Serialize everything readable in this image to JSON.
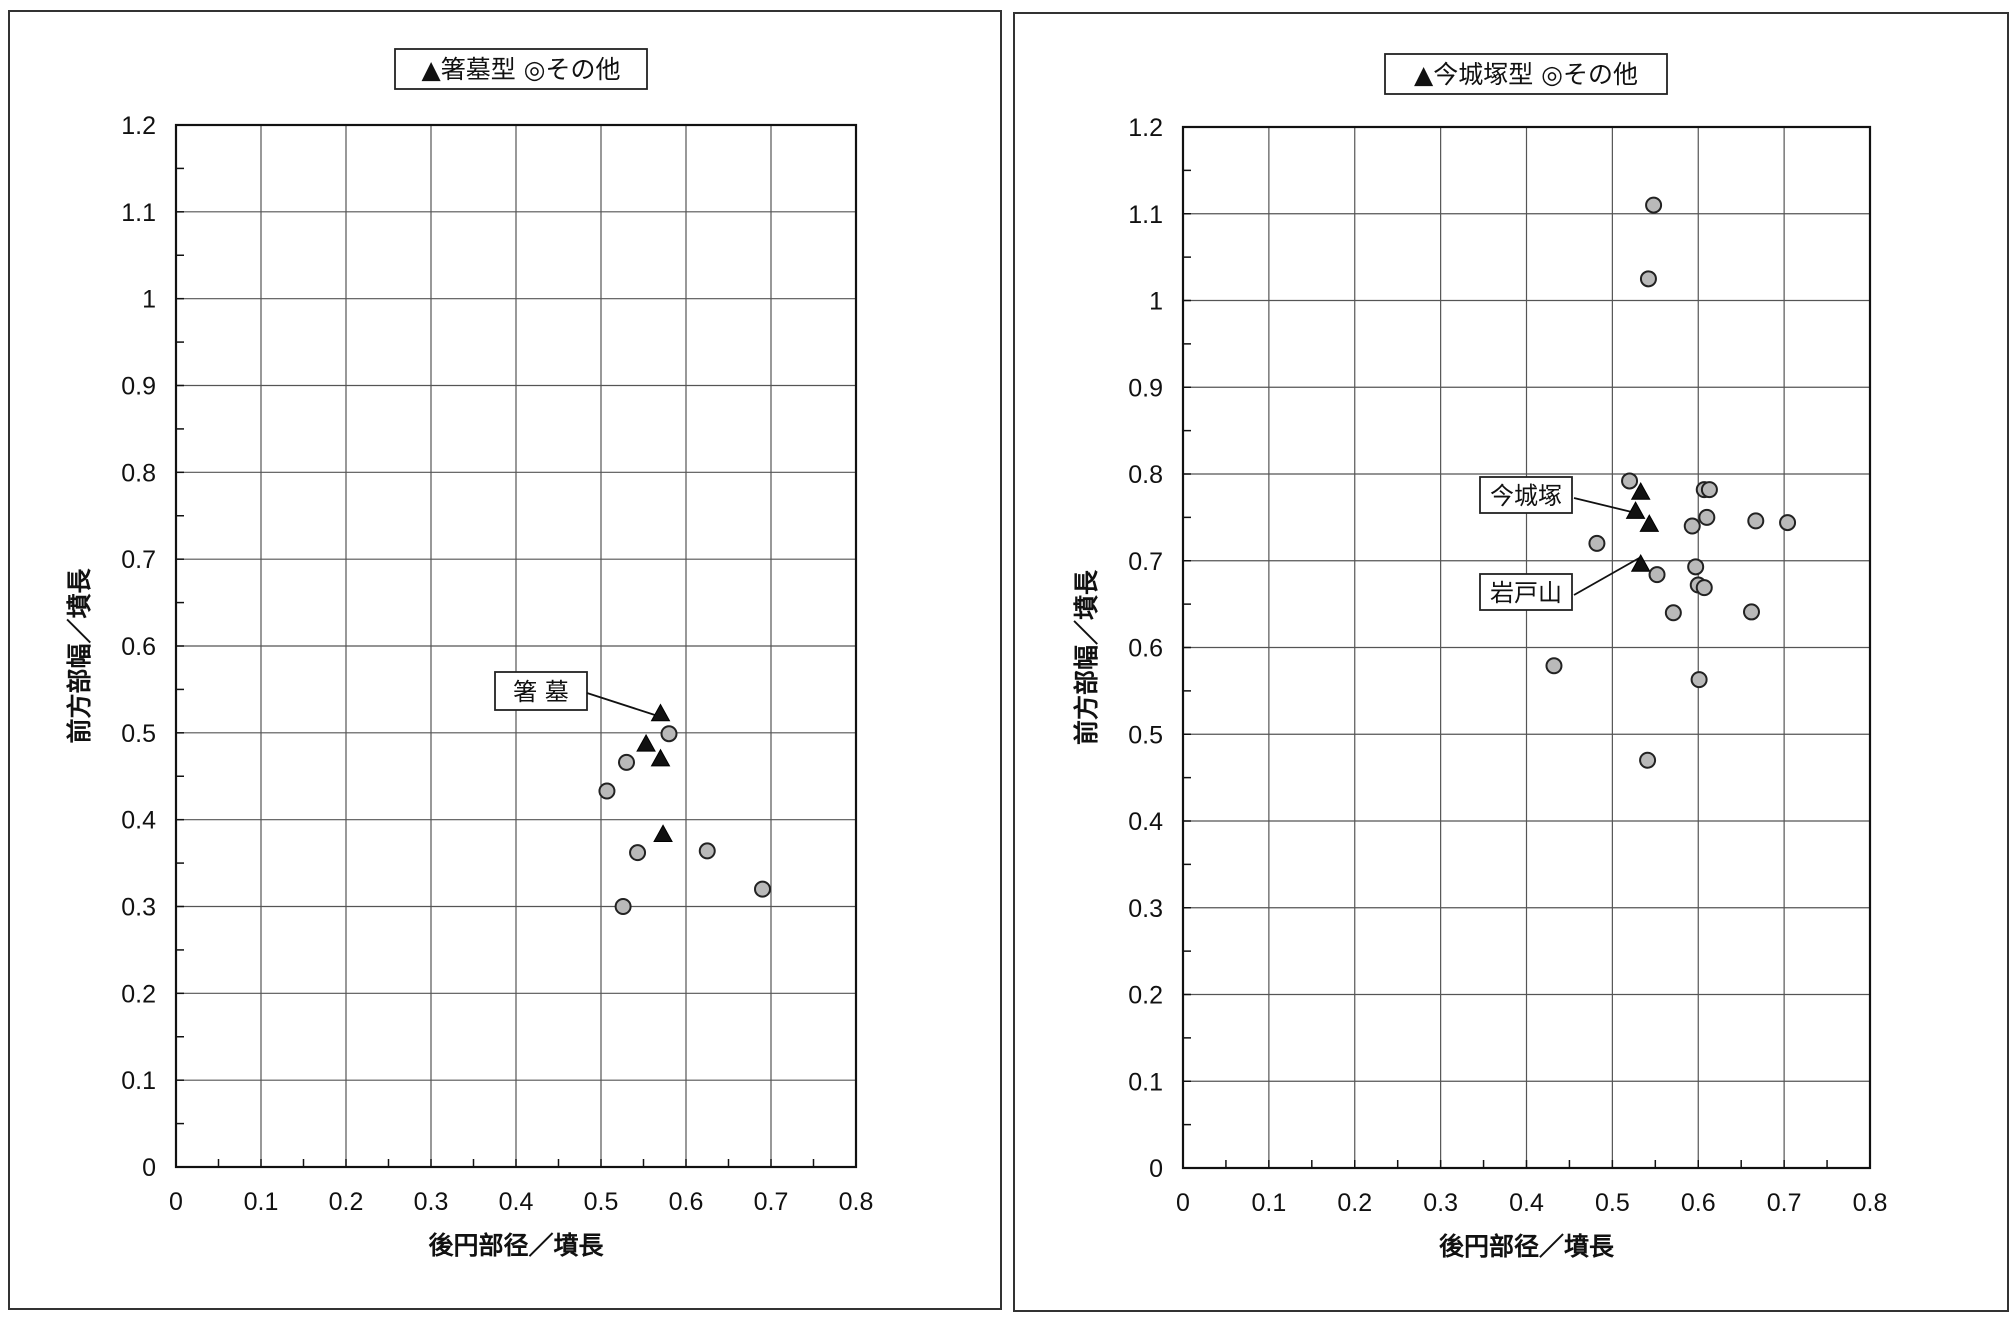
{
  "chart_data": [
    {
      "type": "scatter",
      "title": "",
      "legend": {
        "placement": "top-center",
        "entries": [
          "▲箸墓型",
          "◎その他"
        ]
      },
      "xlabel": "後円部径／墳長",
      "ylabel": "前方部幅／墳長",
      "xlim": [
        0,
        0.8
      ],
      "ylim": [
        0,
        1.2
      ],
      "x_ticks": [
        "0",
        "0.1",
        "0.2",
        "0.3",
        "0.4",
        "0.5",
        "0.6",
        "0.7",
        "0.8"
      ],
      "y_ticks": [
        "0",
        "0.1",
        "0.2",
        "0.3",
        "0.4",
        "0.5",
        "0.6",
        "0.7",
        "0.8",
        "0.9",
        "1",
        "1.1",
        "1.2"
      ],
      "grid": true,
      "series": [
        {
          "name": "箸墓型",
          "marker": "triangle",
          "color": "#111111",
          "x": [
            0.57,
            0.553,
            0.57,
            0.573
          ],
          "y": [
            0.521,
            0.486,
            0.469,
            0.382
          ]
        },
        {
          "name": "その他",
          "marker": "circle",
          "color": "#b9b9b9",
          "x": [
            0.58,
            0.53,
            0.507,
            0.543,
            0.625,
            0.69,
            0.526
          ],
          "y": [
            0.499,
            0.466,
            0.433,
            0.362,
            0.364,
            0.32,
            0.3
          ]
        }
      ],
      "annotations": [
        {
          "text": "箸 墓",
          "x": 0.57,
          "y": 0.521
        }
      ]
    },
    {
      "type": "scatter",
      "title": "",
      "legend": {
        "placement": "top-center",
        "entries": [
          "▲今城塚型",
          "◎その他"
        ]
      },
      "xlabel": "後円部径／墳長",
      "ylabel": "前方部幅／墳長",
      "xlim": [
        0,
        0.8
      ],
      "ylim": [
        0,
        1.2
      ],
      "x_ticks": [
        "0",
        "0.1",
        "0.2",
        "0.3",
        "0.4",
        "0.5",
        "0.6",
        "0.7",
        "0.8"
      ],
      "y_ticks": [
        "0",
        "0.1",
        "0.2",
        "0.3",
        "0.4",
        "0.5",
        "0.6",
        "0.7",
        "0.8",
        "0.9",
        "1",
        "1.1",
        "1.2"
      ],
      "grid": true,
      "series": [
        {
          "name": "今城塚型",
          "marker": "triangle",
          "color": "#111111",
          "x": [
            0.533,
            0.527,
            0.543,
            0.533
          ],
          "y": [
            0.778,
            0.756,
            0.741,
            0.695
          ]
        },
        {
          "name": "その他",
          "marker": "circle",
          "color": "#b9b9b9",
          "x": [
            0.548,
            0.542,
            0.52,
            0.607,
            0.613,
            0.61,
            0.593,
            0.667,
            0.704,
            0.482,
            0.597,
            0.552,
            0.6,
            0.607,
            0.571,
            0.662,
            0.432,
            0.601,
            0.541
          ],
          "y": [
            1.11,
            1.025,
            0.792,
            0.782,
            0.782,
            0.75,
            0.74,
            0.746,
            0.744,
            0.72,
            0.693,
            0.684,
            0.672,
            0.669,
            0.64,
            0.641,
            0.579,
            0.563,
            0.47
          ]
        }
      ],
      "annotations": [
        {
          "text": "今城塚",
          "x": 0.527,
          "y": 0.756
        },
        {
          "text": "岩戸山",
          "x": 0.533,
          "y": 0.695
        }
      ]
    }
  ]
}
